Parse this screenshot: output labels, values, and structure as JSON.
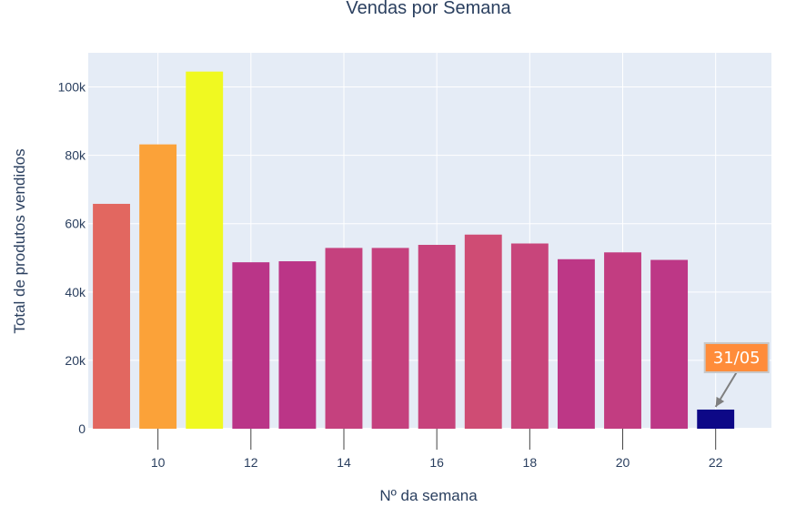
{
  "chart_data": {
    "type": "bar",
    "title": "Vendas por Semana",
    "xlabel": "Nº da semana",
    "ylabel": "Total de produtos vendidos",
    "categories": [
      9,
      10,
      11,
      12,
      13,
      14,
      15,
      16,
      17,
      18,
      19,
      20,
      21,
      22
    ],
    "values": [
      65800,
      83200,
      104500,
      48700,
      49000,
      52900,
      52900,
      53800,
      56800,
      54200,
      49600,
      51600,
      49400,
      5600
    ],
    "xlim": [
      8.5,
      23.2
    ],
    "ylim": [
      0,
      110000
    ],
    "xticks": [
      10,
      12,
      14,
      16,
      18,
      20,
      22
    ],
    "xtick_labels": [
      "10",
      "12",
      "14",
      "16",
      "18",
      "20",
      "22"
    ],
    "yticks": [
      0,
      20000,
      40000,
      60000,
      80000,
      100000
    ],
    "ytick_labels": [
      "0",
      "20k",
      "40k",
      "60k",
      "80k",
      "100k"
    ],
    "grid": true,
    "colorscale": "plasma",
    "annotation": {
      "text": "31/05",
      "x": 22,
      "y": 5600
    }
  },
  "colors": {
    "plot_bg": "#e5ecf6",
    "grid": "#ffffff",
    "text": "#2a3f5f",
    "annotation_bg": "#ff8c3a",
    "annotation_border": "#c8c8c8",
    "arrow": "#7f7f7f"
  }
}
